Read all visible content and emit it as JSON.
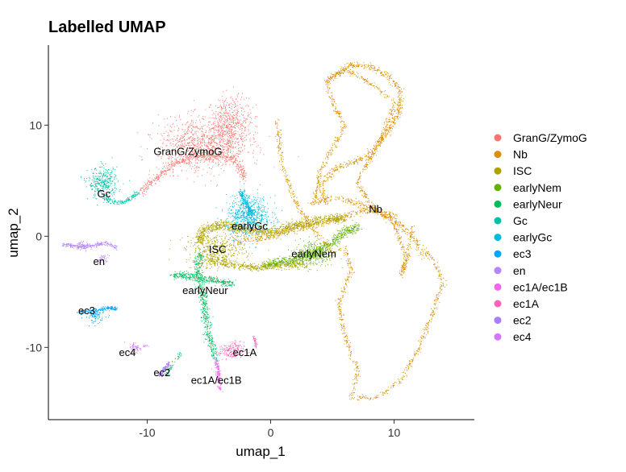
{
  "chart_data": {
    "type": "scatter",
    "title": "Labelled UMAP",
    "xlabel": "umap_1",
    "ylabel": "umap_2",
    "xlim": [
      -18,
      16.5
    ],
    "ylim": [
      -16.5,
      17.2
    ],
    "xticks": [
      -10,
      0,
      10
    ],
    "yticks": [
      -10,
      0,
      10
    ],
    "grid": false,
    "legend_position": "right",
    "series": [
      {
        "name": "GranG/ZymoG",
        "color": "#F8766D",
        "label_pos": [
          -6.7,
          7.6
        ]
      },
      {
        "name": "Nb",
        "color": "#DB8E00",
        "label_pos": [
          8.5,
          2.4
        ]
      },
      {
        "name": "ISC",
        "color": "#AEA200",
        "label_pos": [
          -4.3,
          -1.2
        ]
      },
      {
        "name": "earlyNem",
        "color": "#64B200",
        "label_pos": [
          3.5,
          -1.6
        ]
      },
      {
        "name": "earlyNeur",
        "color": "#00BD5C",
        "label_pos": [
          -5.3,
          -4.9
        ]
      },
      {
        "name": "Gc",
        "color": "#00C1A7",
        "label_pos": [
          -13.5,
          3.8
        ]
      },
      {
        "name": "earlyGc",
        "color": "#00BADE",
        "label_pos": [
          -1.7,
          0.9
        ]
      },
      {
        "name": "ec3",
        "color": "#00A6FF",
        "label_pos": [
          -14.9,
          -6.7
        ]
      },
      {
        "name": "en",
        "color": "#B385FF",
        "label_pos": [
          -13.9,
          -2.3
        ]
      },
      {
        "name": "ec1A/ec1B",
        "color": "#EF67EB",
        "label_pos": [
          -4.4,
          -13.0
        ]
      },
      {
        "name": "ec1A",
        "color": "#FF63B6",
        "label_pos": [
          -2.1,
          -10.5
        ]
      },
      {
        "name": "ec2",
        "color": "#A580FF",
        "label_pos": [
          -8.8,
          -12.3
        ]
      },
      {
        "name": "ec4",
        "color": "#D575FE",
        "label_pos": [
          -11.6,
          -10.5
        ]
      }
    ]
  }
}
